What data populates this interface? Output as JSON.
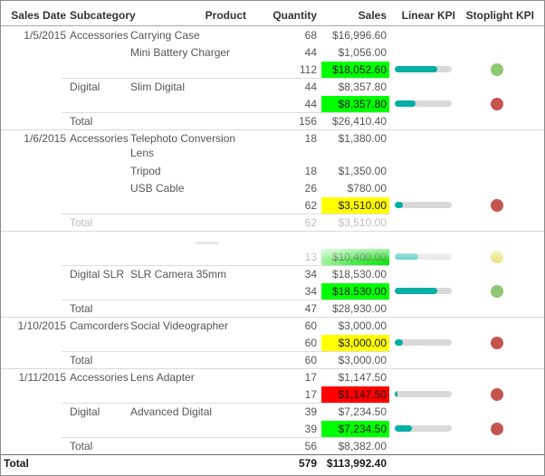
{
  "table": {
    "columns": [
      "Sales Date",
      "Subcategory",
      "Product",
      "Quantity",
      "Sales",
      "Linear KPI",
      "Stoplight KPI"
    ],
    "rows": [
      {
        "type": "product",
        "date": "1/5/2015",
        "subcategory": "Accessories",
        "product": "Carrying Case",
        "quantity": "68",
        "sales": "$16,996.60"
      },
      {
        "type": "product",
        "product": "Mini Battery Charger",
        "quantity": "44",
        "sales": "$1,056.00"
      },
      {
        "type": "subtotal",
        "quantity": "112",
        "sales": "$18,052.60",
        "sales_bg": "green",
        "kpi_pct": 75,
        "stoplight": "green"
      },
      {
        "type": "product",
        "subcategory": "Digital",
        "product": "Slim Digital",
        "quantity": "44",
        "sales": "$8,357.80",
        "sep": "inner"
      },
      {
        "type": "subtotal",
        "quantity": "44",
        "sales": "$8,357.80",
        "sales_bg": "green",
        "kpi_pct": 36,
        "stoplight": "red"
      },
      {
        "type": "total",
        "label": "Total",
        "quantity": "156",
        "sales": "$26,410.40",
        "sep": "inner"
      },
      {
        "type": "product",
        "date": "1/6/2015",
        "subcategory": "Accessories",
        "product": "Telephoto Conversion Lens",
        "quantity": "18",
        "sales": "$1,380.00",
        "sep": "group",
        "tall": true
      },
      {
        "type": "product",
        "product": "Tripod",
        "quantity": "18",
        "sales": "$1,350.00"
      },
      {
        "type": "product",
        "product": "USB Cable",
        "quantity": "26",
        "sales": "$780.00"
      },
      {
        "type": "subtotal",
        "quantity": "62",
        "sales": "$3,510.00",
        "sales_bg": "yellow",
        "kpi_pct": 14,
        "stoplight": "red"
      },
      {
        "type": "total",
        "label": "Total",
        "quantity": "62",
        "sales": "$3,510.00",
        "sep": "inner",
        "faded": true
      },
      {
        "type": "spacer",
        "sep": "group"
      },
      {
        "type": "subtotal",
        "quantity": "13",
        "sales": "$10,400.00",
        "sales_bg": "green",
        "kpi_pct": 41,
        "stoplight": "yellow",
        "faded": true
      },
      {
        "type": "product",
        "subcategory": "Digital SLR",
        "product": "SLR Camera 35mm",
        "quantity": "34",
        "sales": "$18,530.00",
        "sep": "inner"
      },
      {
        "type": "subtotal",
        "quantity": "34",
        "sales": "$18,530.00",
        "sales_bg": "green",
        "kpi_pct": 75,
        "stoplight": "green"
      },
      {
        "type": "total",
        "label": "Total",
        "quantity": "47",
        "sales": "$28,930.00",
        "sep": "inner"
      },
      {
        "type": "product",
        "date": "1/10/2015",
        "subcategory": "Camcorders",
        "product": "Social Videographer",
        "quantity": "60",
        "sales": "$3,000.00",
        "sep": "group"
      },
      {
        "type": "subtotal",
        "quantity": "60",
        "sales": "$3,000.00",
        "sales_bg": "yellow",
        "kpi_pct": 15,
        "stoplight": "red"
      },
      {
        "type": "total",
        "label": "Total",
        "quantity": "60",
        "sales": "$3,000.00",
        "sep": "inner"
      },
      {
        "type": "product",
        "date": "1/11/2015",
        "subcategory": "Accessories",
        "product": "Lens Adapter",
        "quantity": "17",
        "sales": "$1,147.50",
        "sep": "group"
      },
      {
        "type": "subtotal",
        "quantity": "17",
        "sales": "$1,147.50",
        "sales_bg": "red",
        "kpi_pct": 5,
        "stoplight": "red"
      },
      {
        "type": "product",
        "subcategory": "Digital",
        "product": "Advanced Digital",
        "quantity": "39",
        "sales": "$7,234.50",
        "sep": "inner"
      },
      {
        "type": "subtotal",
        "quantity": "39",
        "sales": "$7,234.50",
        "sales_bg": "green",
        "kpi_pct": 30,
        "stoplight": "red"
      },
      {
        "type": "total",
        "label": "Total",
        "quantity": "56",
        "sales": "$8,382.00",
        "sep": "inner"
      }
    ],
    "grand_total": {
      "label": "Total",
      "quantity": "579",
      "sales": "$113,992.40"
    }
  },
  "colors": {
    "sales_bg_green": "#00FF00",
    "sales_bg_yellow": "#FFFF00",
    "sales_bg_red": "#FF0000",
    "kpi_fill": "#00AFA5",
    "kpi_fill_faded": "#63D0C8",
    "kpi_track": "#D9D9D9",
    "stoplight_green": "#8DC972",
    "stoplight_red": "#C4544E",
    "stoplight_yellow": "#EBE588"
  }
}
